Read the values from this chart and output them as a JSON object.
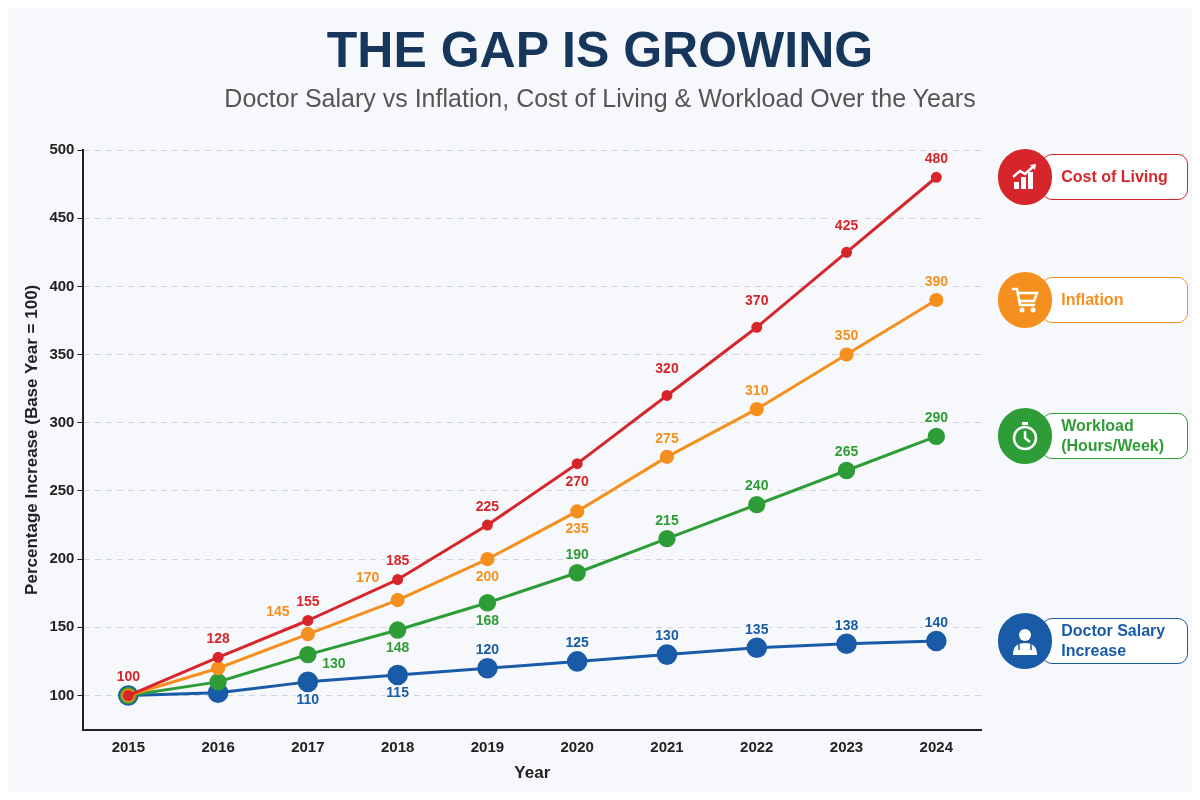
{
  "chart_data": {
    "type": "line",
    "title": "THE GAP IS GROWING",
    "subtitle": "Doctor Salary vs Inflation, Cost of Living & Workload Over the Years",
    "xlabel": "Year",
    "ylabel": "Percentage Increase (Base Year = 100)",
    "categories": [
      "2015",
      "2016",
      "2017",
      "2018",
      "2019",
      "2020",
      "2021",
      "2022",
      "2023",
      "2024"
    ],
    "series": [
      {
        "name": "Cost of Living",
        "color": "#d7262b",
        "values": [
          100,
          128,
          155,
          185,
          225,
          270,
          320,
          370,
          425,
          480
        ],
        "value_labels": [
          "100",
          "128",
          "155",
          "185",
          "225",
          "270",
          "320",
          "370",
          "425",
          "480"
        ]
      },
      {
        "name": "Inflation",
        "color": "#f5901e",
        "values": [
          100,
          120,
          145,
          170,
          200,
          235,
          275,
          310,
          350,
          390
        ],
        "value_labels": [
          null,
          null,
          "145",
          "170",
          "200",
          "235",
          "275",
          "310",
          "350",
          "390"
        ]
      },
      {
        "name": "Workload (Hours/Week)",
        "color": "#2e9c37",
        "values": [
          100,
          110,
          130,
          148,
          168,
          190,
          215,
          240,
          265,
          290
        ],
        "value_labels": [
          null,
          null,
          "130",
          "148",
          "168",
          "190",
          "215",
          "240",
          "265",
          "290"
        ]
      },
      {
        "name": "Doctor Salary Increase",
        "color": "#1a5ba8",
        "values": [
          100,
          102,
          110,
          115,
          120,
          125,
          130,
          135,
          138,
          140
        ],
        "value_labels": [
          null,
          null,
          "110",
          "115",
          "120",
          "125",
          "130",
          "135",
          "138",
          "140"
        ]
      }
    ],
    "ylim": [
      75,
      500
    ],
    "yticks": [
      100,
      150,
      200,
      250,
      300,
      350,
      400,
      450,
      500
    ],
    "grid": "y",
    "legend": "right",
    "marker": "circle",
    "line_style": "solid"
  }
}
